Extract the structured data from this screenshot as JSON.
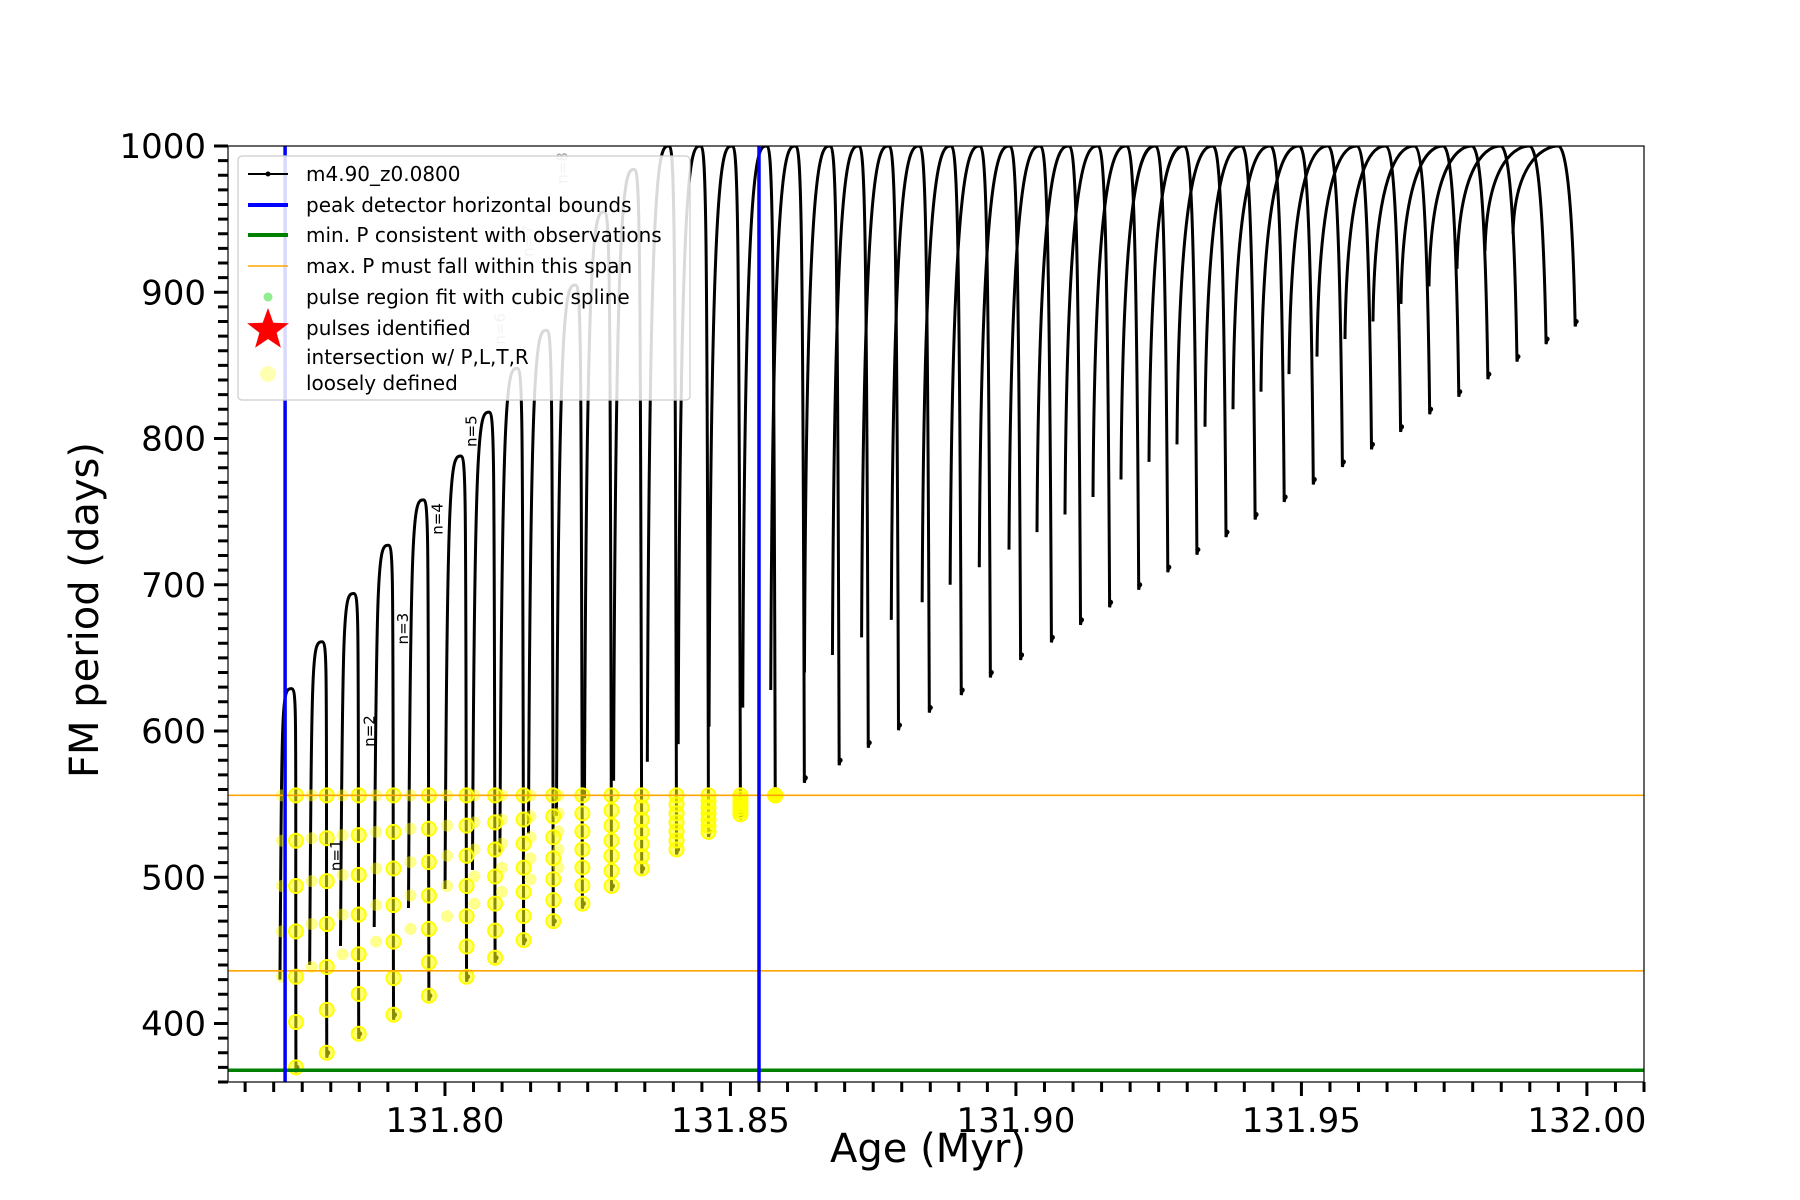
{
  "chart_data": {
    "type": "line",
    "title": "",
    "xlabel": "Age (Myr)",
    "ylabel": "FM period (days)",
    "xlim": [
      131.762,
      132.01
    ],
    "ylim": [
      360,
      1000
    ],
    "x_ticks": [
      131.8,
      131.85,
      131.9,
      131.95,
      132.0
    ],
    "x_tick_labels": [
      "131.80",
      "131.85",
      "131.90",
      "131.95",
      "132.00"
    ],
    "y_ticks": [
      400,
      500,
      600,
      700,
      800,
      900,
      1000
    ],
    "y_tick_labels": [
      "400",
      "500",
      "600",
      "700",
      "800",
      "900",
      "1000"
    ],
    "grid": false,
    "legend_placement": "top-left",
    "colors": {
      "model": "#000000",
      "bounds": "#0000ff",
      "min_p": "#008000",
      "max_p": "#ffa500",
      "spline": "#90ee90",
      "pulses": "#ff0000",
      "intersection": "#ffff00"
    },
    "legend": [
      {
        "label": "m4.90_z0.0800",
        "marker": "line-dot",
        "color": "#000000"
      },
      {
        "label": "peak detector horizontal bounds",
        "marker": "line",
        "color": "#0000ff"
      },
      {
        "label": "min. P consistent with observations",
        "marker": "line",
        "color": "#008000"
      },
      {
        "label": "max. P must fall within this span",
        "marker": "thin-line",
        "color": "#ffa500"
      },
      {
        "label": "pulse region fit with cubic spline",
        "marker": "dot",
        "color": "#90ee90"
      },
      {
        "label": "pulses identified",
        "marker": "star",
        "color": "#ff0000"
      },
      {
        "label": "intersection w/ P,L,T,R",
        "label2": "loosely defined",
        "marker": "circle",
        "color": "#ffff00"
      }
    ],
    "vertical_lines": [
      131.772,
      131.855
    ],
    "horizontal_lines": [
      {
        "y": 368,
        "color": "#008000",
        "role": "min"
      },
      {
        "y": 436,
        "color": "#ffa500",
        "role": "max"
      },
      {
        "y": 556,
        "color": "#ffa500",
        "role": "max"
      }
    ],
    "series": [
      {
        "name": "m4.90_z0.0800",
        "pulses": [
          {
            "x": 131.7725,
            "min": 370,
            "max": 629
          },
          {
            "x": 131.7778,
            "min": 380,
            "max": 661
          },
          {
            "x": 131.7833,
            "min": 393,
            "max": 694
          },
          {
            "x": 131.7893,
            "min": 406,
            "max": 727
          },
          {
            "x": 131.7954,
            "min": 419,
            "max": 758
          },
          {
            "x": 131.8019,
            "min": 432,
            "max": 788
          },
          {
            "x": 131.8068,
            "min": 445,
            "max": 818
          },
          {
            "x": 131.8117,
            "min": 457,
            "max": 848
          },
          {
            "x": 131.8168,
            "min": 470,
            "max": 874
          },
          {
            "x": 131.8218,
            "min": 482,
            "max": 905
          },
          {
            "x": 131.8268,
            "min": 494,
            "max": 955
          },
          {
            "x": 131.832,
            "min": 506,
            "max": 984
          },
          {
            "x": 131.838,
            "min": 519,
            "max": 1000
          },
          {
            "x": 131.8435,
            "min": 531,
            "max": 1000
          },
          {
            "x": 131.849,
            "min": 543,
            "max": 1000
          },
          {
            "x": 131.855,
            "min": 556,
            "max": 1000
          },
          {
            "x": 131.86,
            "min": 568,
            "max": 1000
          },
          {
            "x": 131.866,
            "min": 580,
            "max": 1000
          },
          {
            "x": 131.871,
            "min": 592,
            "max": 1000
          },
          {
            "x": 131.8762,
            "min": 604,
            "max": 1000
          },
          {
            "x": 131.8815,
            "min": 616,
            "max": 1000
          },
          {
            "x": 131.887,
            "min": 628,
            "max": 1000
          },
          {
            "x": 131.892,
            "min": 640,
            "max": 1000
          },
          {
            "x": 131.8972,
            "min": 652,
            "max": 1000
          },
          {
            "x": 131.9025,
            "min": 664,
            "max": 1000
          },
          {
            "x": 131.9075,
            "min": 676,
            "max": 1000
          },
          {
            "x": 131.9125,
            "min": 688,
            "max": 1000
          },
          {
            "x": 131.9175,
            "min": 700,
            "max": 1000
          },
          {
            "x": 131.9225,
            "min": 712,
            "max": 1000
          },
          {
            "x": 131.9275,
            "min": 724,
            "max": 1000
          },
          {
            "x": 131.9325,
            "min": 736,
            "max": 1000
          },
          {
            "x": 131.9375,
            "min": 748,
            "max": 1000
          },
          {
            "x": 131.9425,
            "min": 760,
            "max": 1000
          },
          {
            "x": 131.9475,
            "min": 772,
            "max": 1000
          },
          {
            "x": 131.9525,
            "min": 784,
            "max": 1000
          },
          {
            "x": 131.9575,
            "min": 796,
            "max": 1000
          },
          {
            "x": 131.9625,
            "min": 808,
            "max": 1000
          },
          {
            "x": 131.9675,
            "min": 820,
            "max": 1000
          },
          {
            "x": 131.9725,
            "min": 832,
            "max": 1000
          },
          {
            "x": 131.9775,
            "min": 844,
            "max": 1000
          },
          {
            "x": 131.9825,
            "min": 856,
            "max": 1000
          },
          {
            "x": 131.9875,
            "min": 868,
            "max": 1000
          },
          {
            "x": 131.9925,
            "min": 880,
            "max": 1000
          }
        ]
      }
    ],
    "annotations": [
      {
        "text": "n=1",
        "x": 131.7818,
        "y": 515
      },
      {
        "text": "n=2",
        "x": 131.7877,
        "y": 600
      },
      {
        "text": "n=3",
        "x": 131.7935,
        "y": 670
      },
      {
        "text": "n=4",
        "x": 131.7996,
        "y": 745
      },
      {
        "text": "n=5",
        "x": 131.8055,
        "y": 805
      },
      {
        "text": "n=6",
        "x": 131.8105,
        "y": 875
      },
      {
        "text": "n=7",
        "x": 131.8155,
        "y": 935
      },
      {
        "text": "n=8",
        "x": 131.8215,
        "y": 985
      }
    ]
  }
}
